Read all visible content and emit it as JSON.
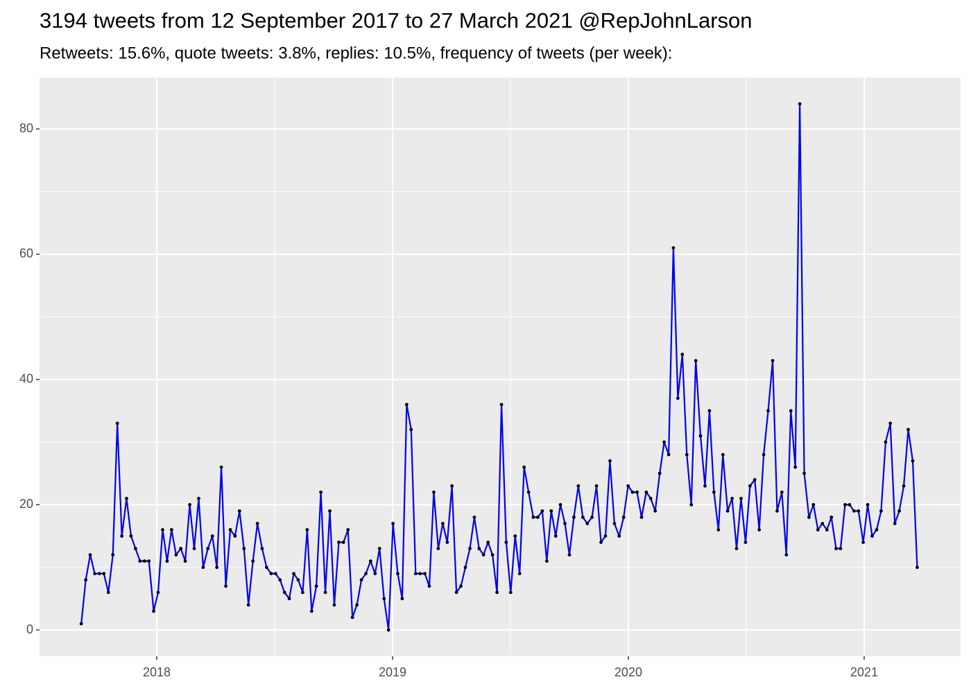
{
  "chart_data": {
    "type": "line",
    "title": "3194 tweets from 12 September 2017 to 27 March 2021 @RepJohnLarson",
    "subtitle": "Retweets: 15.6%, quote tweets: 3.8%, replies: 10.5%, frequency of tweets (per week):",
    "x": [
      2017.68,
      2017.699,
      2017.718,
      2017.737,
      2017.757,
      2017.776,
      2017.795,
      2017.814,
      2017.833,
      2017.852,
      2017.872,
      2017.891,
      2017.91,
      2017.929,
      2017.948,
      2017.967,
      2017.987,
      2018.006,
      2018.025,
      2018.044,
      2018.063,
      2018.082,
      2018.102,
      2018.121,
      2018.14,
      2018.159,
      2018.178,
      2018.197,
      2018.217,
      2018.236,
      2018.255,
      2018.274,
      2018.293,
      2018.312,
      2018.332,
      2018.351,
      2018.37,
      2018.389,
      2018.408,
      2018.427,
      2018.447,
      2018.466,
      2018.485,
      2018.504,
      2018.523,
      2018.542,
      2018.562,
      2018.581,
      2018.6,
      2018.619,
      2018.638,
      2018.657,
      2018.677,
      2018.696,
      2018.715,
      2018.734,
      2018.753,
      2018.772,
      2018.792,
      2018.811,
      2018.83,
      2018.849,
      2018.868,
      2018.887,
      2018.907,
      2018.926,
      2018.945,
      2018.964,
      2018.983,
      2019.002,
      2019.022,
      2019.041,
      2019.06,
      2019.079,
      2019.098,
      2019.117,
      2019.137,
      2019.156,
      2019.175,
      2019.194,
      2019.213,
      2019.232,
      2019.252,
      2019.271,
      2019.29,
      2019.309,
      2019.328,
      2019.347,
      2019.367,
      2019.386,
      2019.405,
      2019.424,
      2019.443,
      2019.462,
      2019.482,
      2019.501,
      2019.52,
      2019.539,
      2019.558,
      2019.577,
      2019.597,
      2019.616,
      2019.635,
      2019.654,
      2019.673,
      2019.692,
      2019.712,
      2019.731,
      2019.75,
      2019.769,
      2019.788,
      2019.807,
      2019.826,
      2019.846,
      2019.865,
      2019.884,
      2019.903,
      2019.922,
      2019.941,
      2019.961,
      2019.98,
      2019.999,
      2020.018,
      2020.037,
      2020.056,
      2020.076,
      2020.095,
      2020.114,
      2020.133,
      2020.152,
      2020.171,
      2020.191,
      2020.21,
      2020.229,
      2020.248,
      2020.267,
      2020.286,
      2020.306,
      2020.325,
      2020.344,
      2020.363,
      2020.382,
      2020.401,
      2020.421,
      2020.44,
      2020.459,
      2020.478,
      2020.497,
      2020.516,
      2020.536,
      2020.555,
      2020.574,
      2020.593,
      2020.612,
      2020.631,
      2020.651,
      2020.67,
      2020.689,
      2020.708,
      2020.727,
      2020.746,
      2020.766,
      2020.785,
      2020.804,
      2020.823,
      2020.842,
      2020.861,
      2020.881,
      2020.9,
      2020.919,
      2020.938,
      2020.957,
      2020.976,
      2020.996,
      2021.015,
      2021.034,
      2021.053,
      2021.072,
      2021.091,
      2021.111,
      2021.13,
      2021.149,
      2021.168,
      2021.187,
      2021.206,
      2021.225
    ],
    "series": [
      {
        "color": "#0000ee",
        "point_color": "#000000",
        "values": [
          1,
          8,
          12,
          9,
          9,
          9,
          6,
          12,
          33,
          15,
          21,
          15,
          13,
          11,
          11,
          11,
          3,
          6,
          16,
          11,
          16,
          12,
          13,
          11,
          20,
          13,
          21,
          10,
          13,
          15,
          10,
          26,
          7,
          16,
          15,
          19,
          13,
          4,
          11,
          17,
          13,
          10,
          9,
          9,
          8,
          6,
          5,
          9,
          8,
          6,
          16,
          3,
          7,
          22,
          6,
          19,
          4,
          14,
          14,
          16,
          2,
          4,
          8,
          9,
          11,
          9,
          13,
          5,
          0,
          17,
          9,
          5,
          36,
          32,
          9,
          9,
          9,
          7,
          22,
          13,
          17,
          14,
          23,
          6,
          7,
          10,
          13,
          18,
          13,
          12,
          14,
          12,
          6,
          36,
          14,
          6,
          15,
          9,
          26,
          22,
          18,
          18,
          19,
          11,
          19,
          15,
          20,
          17,
          12,
          18,
          23,
          18,
          17,
          18,
          23,
          14,
          15,
          27,
          17,
          15,
          18,
          23,
          22,
          22,
          18,
          22,
          21,
          19,
          25,
          30,
          28,
          61,
          37,
          44,
          28,
          20,
          43,
          31,
          23,
          35,
          22,
          16,
          28,
          19,
          21,
          13,
          21,
          14,
          23,
          24,
          16,
          28,
          35,
          43,
          19,
          22,
          12,
          35,
          26,
          84,
          25,
          18,
          20,
          16,
          17,
          16,
          18,
          13,
          13,
          20,
          20,
          19,
          19,
          14,
          20,
          15,
          16,
          19,
          30,
          33,
          17,
          19,
          23,
          32,
          27,
          10
        ]
      }
    ],
    "xlim": [
      2017.503,
      2021.409
    ],
    "xticks": [
      2018,
      2019,
      2020,
      2021
    ],
    "ylim": [
      -4.2,
      88.2
    ],
    "yticks": [
      0,
      20,
      40,
      60,
      80
    ],
    "grid": true
  }
}
